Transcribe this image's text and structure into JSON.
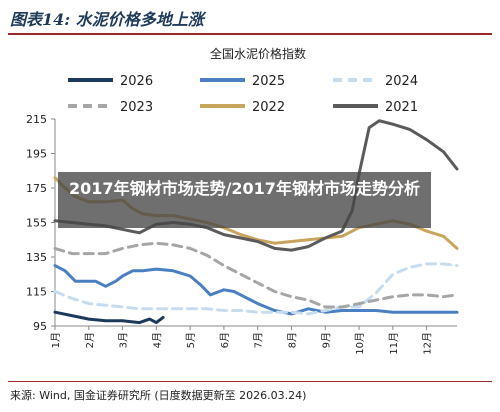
{
  "figure": {
    "title": "图表14: 水泥价格多地上涨",
    "source": "来源: Wind, 国金证券研究所 (日度数据更新至 2026.03.24)"
  },
  "overlay": {
    "text": "2017年钢材市场走势/2017年钢材市场走势分析"
  },
  "chart_data": {
    "type": "line",
    "title": "全国水泥价格指数",
    "xlabel": "",
    "ylabel": "",
    "x_categories": [
      "1月",
      "2月",
      "3月",
      "4月",
      "5月",
      "6月",
      "7月",
      "8月",
      "9月",
      "10月",
      "11月",
      "12月"
    ],
    "x_range": [
      1,
      12.9
    ],
    "ylim": [
      95,
      215
    ],
    "yticks": [
      95,
      115,
      135,
      155,
      175,
      195,
      215
    ],
    "grid": false,
    "legend_position": "top",
    "series": [
      {
        "name": "2026",
        "color": "#1b3a5c",
        "dash": "solid",
        "x": [
          1.0,
          1.5,
          2.0,
          2.5,
          3.0,
          3.5,
          3.8,
          4.0,
          4.2
        ],
        "y": [
          103,
          101,
          99,
          98,
          98,
          97,
          99,
          97,
          100
        ]
      },
      {
        "name": "2025",
        "color": "#4a7fc1",
        "dash": "solid",
        "x": [
          1.0,
          1.3,
          1.6,
          1.9,
          2.2,
          2.5,
          2.8,
          3.0,
          3.3,
          3.6,
          4.0,
          4.5,
          5.0,
          5.3,
          5.6,
          6.0,
          6.3,
          6.6,
          7.0,
          7.5,
          8.0,
          8.5,
          9.0,
          9.5,
          10.0,
          10.5,
          11.0,
          11.5,
          12.0,
          12.5,
          12.9
        ],
        "y": [
          130,
          127,
          121,
          121,
          121,
          118,
          121,
          124,
          127,
          127,
          128,
          127,
          124,
          119,
          113,
          116,
          115,
          112,
          108,
          104,
          102,
          105,
          103,
          104,
          104,
          104,
          103,
          103,
          103,
          103,
          103
        ]
      },
      {
        "name": "2024",
        "color": "#c7dcef",
        "dash": "dashed",
        "x": [
          1.0,
          1.5,
          2.0,
          2.5,
          3.0,
          3.5,
          4.0,
          4.5,
          5.0,
          5.5,
          6.0,
          6.5,
          7.0,
          7.5,
          8.0,
          8.5,
          9.0,
          9.5,
          10.0,
          10.5,
          11.0,
          11.5,
          12.0,
          12.5,
          12.9
        ],
        "y": [
          115,
          111,
          108,
          107,
          106,
          105,
          105,
          105,
          105,
          105,
          104,
          104,
          103,
          103,
          103,
          102,
          104,
          106,
          106,
          114,
          125,
          129,
          131,
          131,
          130
        ]
      },
      {
        "name": "2023",
        "color": "#a6a6a6",
        "dash": "dashed",
        "x": [
          1.0,
          1.5,
          2.0,
          2.5,
          3.0,
          3.5,
          4.0,
          4.5,
          5.0,
          5.5,
          6.0,
          6.5,
          7.0,
          7.5,
          8.0,
          8.5,
          9.0,
          9.5,
          10.0,
          10.5,
          11.0,
          11.5,
          12.0,
          12.5,
          12.9
        ],
        "y": [
          140,
          137,
          137,
          137,
          140,
          142,
          143,
          142,
          140,
          136,
          130,
          125,
          120,
          115,
          112,
          110,
          106,
          106,
          108,
          110,
          112,
          113,
          113,
          112,
          113
        ]
      },
      {
        "name": "2022",
        "color": "#c9a45c",
        "dash": "solid",
        "x": [
          1.0,
          1.3,
          1.6,
          2.0,
          2.5,
          3.0,
          3.3,
          3.6,
          4.0,
          4.5,
          5.0,
          5.5,
          6.0,
          6.5,
          7.0,
          7.5,
          8.0,
          8.5,
          9.0,
          9.5,
          10.0,
          10.5,
          11.0,
          11.5,
          12.0,
          12.5,
          12.9
        ],
        "y": [
          181,
          175,
          170,
          167,
          167,
          168,
          163,
          160,
          159,
          159,
          157,
          155,
          152,
          148,
          145,
          143,
          144,
          145,
          146,
          147,
          152,
          154,
          156,
          154,
          150,
          147,
          140
        ]
      },
      {
        "name": "2021",
        "color": "#5b5b5b",
        "dash": "solid",
        "x": [
          1.0,
          1.5,
          2.0,
          2.5,
          3.0,
          3.5,
          4.0,
          4.5,
          5.0,
          5.5,
          6.0,
          6.5,
          7.0,
          7.5,
          8.0,
          8.5,
          9.0,
          9.5,
          9.8,
          10.0,
          10.3,
          10.6,
          11.0,
          11.5,
          12.0,
          12.5,
          12.9
        ],
        "y": [
          156,
          155,
          154,
          153,
          151,
          149,
          154,
          155,
          154,
          152,
          148,
          146,
          144,
          140,
          139,
          141,
          146,
          150,
          162,
          183,
          210,
          214,
          212,
          209,
          203,
          196,
          186
        ]
      }
    ]
  }
}
